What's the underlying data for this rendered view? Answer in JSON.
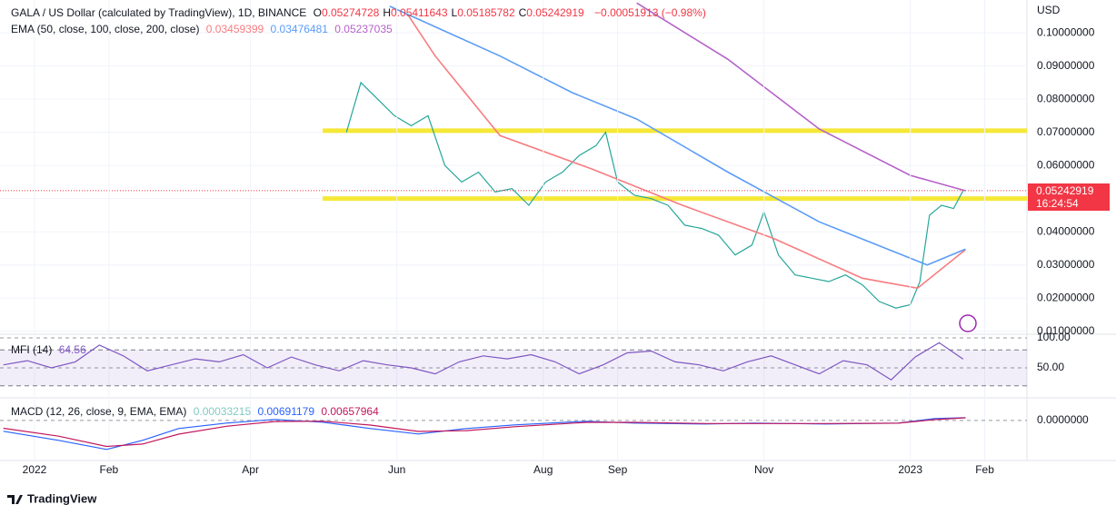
{
  "header": {
    "symbol": "GALA / US Dollar (calculated by TradingView), 1D, BINANCE",
    "ohlc": [
      {
        "key": "O",
        "value": "0.05274728"
      },
      {
        "key": "H",
        "value": "0.05411643"
      },
      {
        "key": "L",
        "value": "0.05185782"
      },
      {
        "key": "C",
        "value": "0.05242919"
      }
    ],
    "change": "−0.00051913 (−0.98%)",
    "ema_label": "EMA (50, close, 100, close, 200, close)",
    "ema_values": [
      "0.03459399",
      "0.03476481",
      "0.05237035"
    ],
    "mfi_label": "MFI (14)",
    "mfi_value": "64.56",
    "macd_label": "MACD (12, 26, close, 9, EMA, EMA)",
    "macd_values": [
      "0.00033215",
      "0.00691179",
      "0.00657964"
    ],
    "currency": "USD",
    "last_price": "0.05242919",
    "countdown": "16:24:54",
    "brand": "TradingView"
  },
  "chart_data": [
    {
      "type": "line",
      "xlim": [
        -14.4,
        413.6
      ],
      "xticks": [
        {
          "value": 0,
          "label": "2022"
        },
        {
          "value": 31,
          "label": "Feb"
        },
        {
          "value": 90,
          "label": "Apr"
        },
        {
          "value": 151,
          "label": "Jun"
        },
        {
          "value": 212,
          "label": "Aug"
        },
        {
          "value": 243,
          "label": "Sep"
        },
        {
          "value": 304,
          "label": "Nov"
        },
        {
          "value": 365,
          "label": "2023"
        },
        {
          "value": 396,
          "label": "Feb"
        }
      ],
      "ylim": [
        0.0091,
        0.1099
      ],
      "yticks": [
        {
          "value": 0.01,
          "label": "0.01000000"
        },
        {
          "value": 0.02,
          "label": "0.02000000"
        },
        {
          "value": 0.03,
          "label": "0.03000000"
        },
        {
          "value": 0.04,
          "label": "0.04000000"
        },
        {
          "value": 0.05,
          "label": "0.05000000"
        },
        {
          "value": 0.06,
          "label": "0.06000000"
        },
        {
          "value": 0.07,
          "label": "0.07000000"
        },
        {
          "value": 0.08,
          "label": "0.08000000"
        },
        {
          "value": 0.09,
          "label": "0.09000000"
        },
        {
          "value": 0.1,
          "label": "0.10000000"
        }
      ],
      "hlines": [
        {
          "value": 0.0705,
          "color": "#f5e837"
        },
        {
          "value": 0.05,
          "color": "#f5e837"
        }
      ],
      "series": [
        {
          "color": "#26a69a",
          "x": [
            130,
            136,
            143,
            150,
            157,
            164,
            171,
            178,
            185,
            192,
            199,
            206,
            213,
            220,
            227,
            234,
            238,
            243,
            250,
            257,
            264,
            271,
            278,
            285,
            292,
            299,
            304,
            310,
            317,
            324,
            331,
            338,
            345,
            352,
            359,
            365,
            369,
            373,
            378,
            383,
            387
          ],
          "values": [
            0.07,
            0.085,
            0.08,
            0.075,
            0.072,
            0.075,
            0.06,
            0.055,
            0.058,
            0.052,
            0.053,
            0.048,
            0.055,
            0.058,
            0.063,
            0.066,
            0.07,
            0.055,
            0.051,
            0.05,
            0.048,
            0.042,
            0.041,
            0.039,
            0.033,
            0.036,
            0.046,
            0.033,
            0.027,
            0.026,
            0.025,
            0.027,
            0.024,
            0.019,
            0.017,
            0.018,
            0.025,
            0.045,
            0.048,
            0.047,
            0.05242919
          ]
        },
        {
          "color": "#f77c80",
          "x": [
            156,
            167,
            194,
            232,
            270,
            308,
            345,
            368,
            388
          ],
          "values": [
            0.105,
            0.093,
            0.069,
            0.059,
            0.048,
            0.038,
            0.026,
            0.023,
            0.03459399
          ]
        },
        {
          "color": "#5b9cf6",
          "x": [
            148,
            194,
            224,
            251,
            289,
            327,
            372,
            388
          ],
          "values": [
            0.108,
            0.093,
            0.082,
            0.074,
            0.058,
            0.043,
            0.03,
            0.03476481
          ]
        },
        {
          "color": "#b562c9",
          "x": [
            251,
            289,
            327,
            365,
            388
          ],
          "values": [
            0.109,
            0.092,
            0.071,
            0.057,
            0.05237035
          ]
        }
      ]
    },
    {
      "type": "line",
      "ylim": [
        0,
        100
      ],
      "yticks": [
        {
          "value": 100,
          "label": "100.00"
        },
        {
          "value": 50,
          "label": "50.00"
        }
      ],
      "band": [
        20,
        80
      ],
      "series": [
        {
          "color": "#7e57c2",
          "x": [
            -13,
            -3,
            7,
            17,
            27,
            37,
            47,
            57,
            67,
            77,
            87,
            97,
            107,
            117,
            127,
            137,
            147,
            157,
            167,
            177,
            187,
            197,
            207,
            217,
            227,
            237,
            247,
            257,
            267,
            277,
            287,
            297,
            307,
            317,
            327,
            337,
            347,
            357,
            367,
            377,
            387
          ],
          "values": [
            55,
            62,
            50,
            60,
            88,
            70,
            45,
            55,
            65,
            60,
            72,
            50,
            68,
            55,
            45,
            62,
            55,
            50,
            40,
            60,
            70,
            65,
            72,
            60,
            40,
            55,
            75,
            78,
            60,
            55,
            45,
            60,
            70,
            55,
            40,
            62,
            55,
            30,
            68,
            92,
            64.56
          ]
        }
      ]
    },
    {
      "type": "line",
      "ylim": [
        -0.097,
        0.041
      ],
      "yticks": [
        {
          "value": 0,
          "label": "0.0000000"
        }
      ],
      "series": [
        {
          "color": "#2962ff",
          "x": [
            -13,
            10,
            30,
            45,
            60,
            80,
            100,
            120,
            140,
            160,
            180,
            200,
            230,
            250,
            280,
            300,
            330,
            360,
            375,
            388
          ],
          "values": [
            -0.0276,
            -0.0506,
            -0.0736,
            -0.0506,
            -0.0207,
            -0.0069,
            0.0023,
            -0.0046,
            -0.0207,
            -0.0345,
            -0.0207,
            -0.0115,
            -0.0023,
            -0.0069,
            -0.0092,
            -0.0069,
            -0.0092,
            -0.0069,
            0.0046,
            0.00691179
          ]
        },
        {
          "color": "#c2185b",
          "x": [
            -13,
            10,
            30,
            45,
            60,
            80,
            100,
            120,
            140,
            160,
            180,
            200,
            230,
            250,
            280,
            300,
            330,
            360,
            375,
            388
          ],
          "values": [
            -0.02,
            -0.04,
            -0.066,
            -0.06,
            -0.035,
            -0.015,
            -0.003,
            -0.002,
            -0.012,
            -0.028,
            -0.026,
            -0.016,
            -0.005,
            -0.005,
            -0.008,
            -0.008,
            -0.008,
            -0.007,
            0.002,
            0.00657964
          ]
        }
      ]
    }
  ]
}
